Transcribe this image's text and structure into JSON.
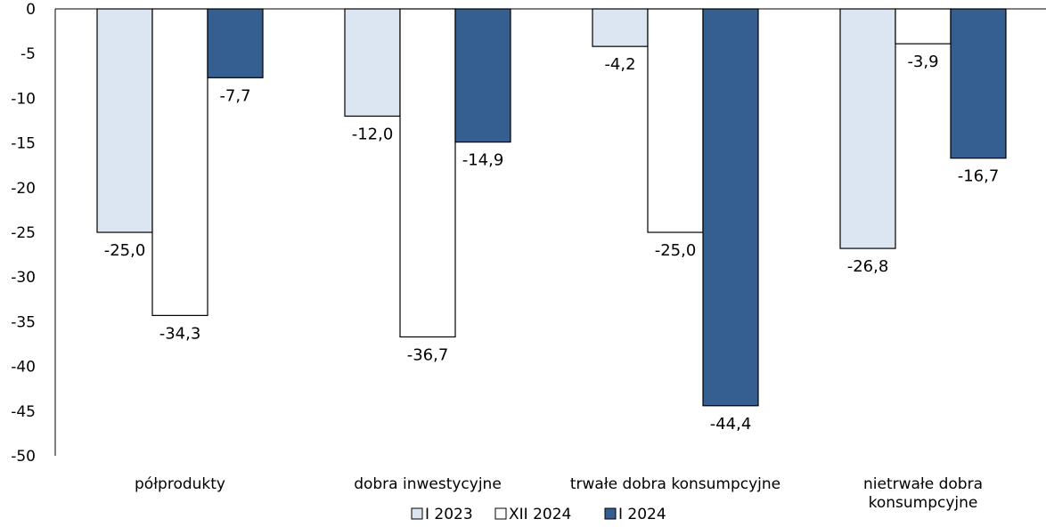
{
  "chart_data": {
    "type": "bar",
    "title": "",
    "xlabel": "",
    "ylabel": "",
    "ylim": [
      -50,
      0
    ],
    "yticks": [
      0,
      -5,
      -10,
      -15,
      -20,
      -25,
      -30,
      -35,
      -40,
      -45,
      -50
    ],
    "grid": false,
    "legend_position": "bottom",
    "categories": [
      "półprodukty",
      "dobra inwestycyjne",
      "trwałe dobra konsumpcyjne",
      "nietrwałe dobra konsumpcyjne"
    ],
    "series": [
      {
        "name": "I 2023",
        "values": [
          -25.0,
          -12.0,
          -4.2,
          -26.8
        ],
        "labels": [
          "-25,0",
          "-12,0",
          "-4,2",
          "-26,8"
        ],
        "color": "#dce6f2"
      },
      {
        "name": "XII 2024",
        "values": [
          -34.3,
          -36.7,
          -25.0,
          -3.9
        ],
        "labels": [
          "-34,3",
          "-36,7",
          "-25,0",
          "-3,9"
        ],
        "color": "#ffffff"
      },
      {
        "name": "I 2024",
        "values": [
          -7.7,
          -14.9,
          -44.4,
          -16.7
        ],
        "labels": [
          "-7,7",
          "-14,9",
          "-44,4",
          "-16,7"
        ],
        "color": "#355f91"
      }
    ]
  }
}
